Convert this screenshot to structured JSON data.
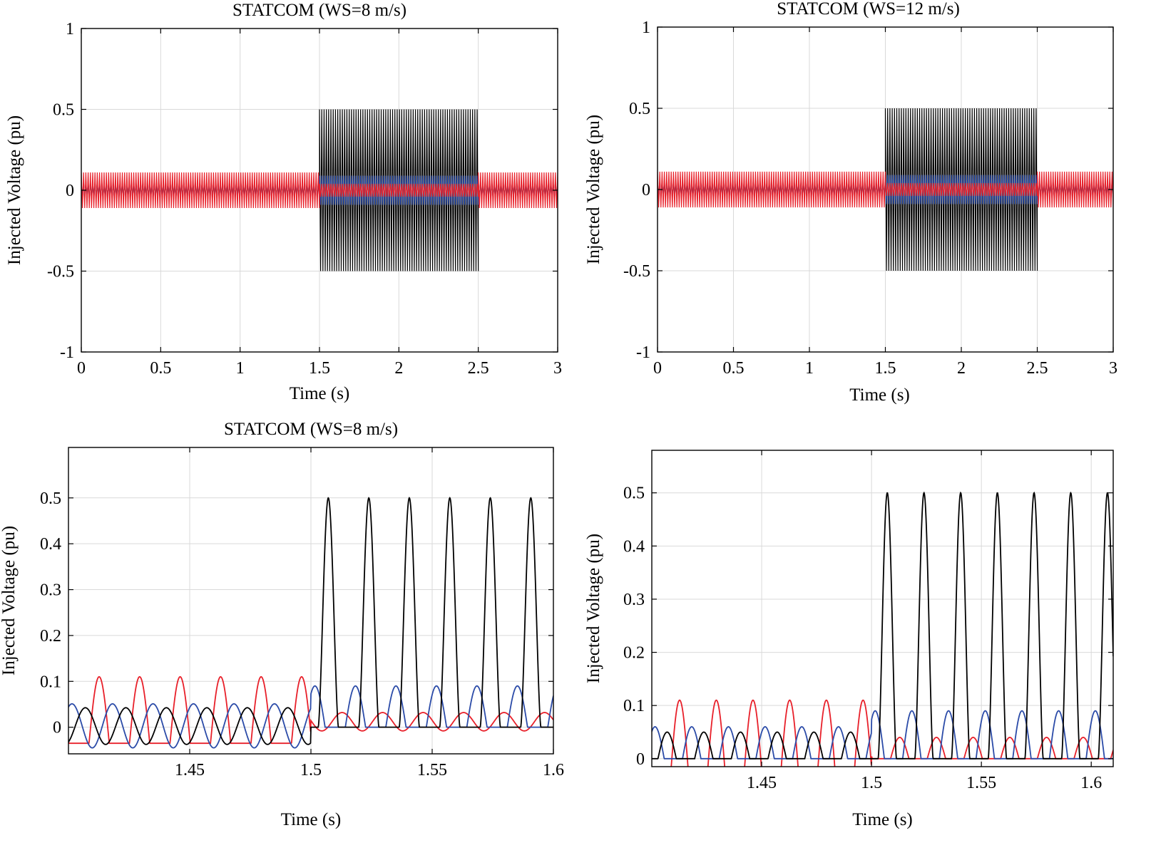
{
  "chart_data": [
    {
      "type": "line",
      "title": "STATCOM (WS=8 m/s)",
      "xlabel": "Time (s)",
      "ylabel": "Injected Voltage (pu)",
      "xlim": [
        0,
        3
      ],
      "ylim": [
        -1,
        1
      ],
      "xticks": [
        0,
        0.5,
        1,
        1.5,
        2,
        2.5,
        3
      ],
      "xtick_labels": [
        "0",
        "0.5",
        "1",
        "1.5",
        "2",
        "2.5",
        "3"
      ],
      "yticks": [
        -1,
        -0.5,
        0,
        0.5,
        1
      ],
      "ytick_labels": [
        "-1",
        "-0.5",
        "0",
        "0.5",
        "1"
      ],
      "grid": true,
      "legend": "none",
      "fault_window": [
        1.5,
        2.5
      ],
      "series": [
        {
          "color": "#000000",
          "envelope_normal": [
            -0.05,
            0.05
          ],
          "envelope_fault": [
            -0.5,
            0.5
          ]
        },
        {
          "color": "#2b4ba8",
          "envelope_normal": [
            -0.06,
            0.06
          ],
          "envelope_fault": [
            -0.09,
            0.09
          ]
        },
        {
          "color": "#e8202a",
          "envelope_normal": [
            -0.11,
            0.11
          ],
          "envelope_fault": [
            -0.04,
            0.04
          ]
        }
      ]
    },
    {
      "type": "line",
      "title": "STATCOM (WS=12 m/s)",
      "xlabel": "Time (s)",
      "ylabel": "Injected Voltage (pu)",
      "xlim": [
        0,
        3
      ],
      "ylim": [
        -1,
        1
      ],
      "xticks": [
        0,
        0.5,
        1,
        1.5,
        2,
        2.5,
        3
      ],
      "xtick_labels": [
        "0",
        "0.5",
        "1",
        "1.5",
        "2",
        "2.5",
        "3"
      ],
      "yticks": [
        -1,
        -0.5,
        0,
        0.5,
        1
      ],
      "ytick_labels": [
        "-1",
        "-0.5",
        "0",
        "0.5",
        "1"
      ],
      "grid": true,
      "legend": "none",
      "fault_window": [
        1.5,
        2.5
      ],
      "series": [
        {
          "color": "#000000",
          "envelope_normal": [
            -0.05,
            0.05
          ],
          "envelope_fault": [
            -0.5,
            0.5
          ]
        },
        {
          "color": "#2b4ba8",
          "envelope_normal": [
            -0.06,
            0.06
          ],
          "envelope_fault": [
            -0.09,
            0.09
          ]
        },
        {
          "color": "#e8202a",
          "envelope_normal": [
            -0.11,
            0.11
          ],
          "envelope_fault": [
            -0.04,
            0.04
          ]
        }
      ]
    },
    {
      "type": "line",
      "title": "STATCOM (WS=8 m/s)",
      "xlabel": "Time (s)",
      "ylabel": "Injected Voltage (pu)",
      "xlim": [
        1.4,
        1.6
      ],
      "ylim": [
        -0.058,
        0.61
      ],
      "xticks": [
        1.45,
        1.5,
        1.55,
        1.6
      ],
      "xtick_labels": [
        "1.45",
        "1.5",
        "1.55",
        "1.6"
      ],
      "yticks": [
        0,
        0.1,
        0.2,
        0.3,
        0.4,
        0.5
      ],
      "ytick_labels": [
        "0",
        "0.1",
        "0.2",
        "0.3",
        "0.4",
        "0.5"
      ],
      "grid": true,
      "legend": "none",
      "fault_start": 1.5,
      "period": 0.0167,
      "series": [
        {
          "color": "#000000",
          "amplitude_before": 0.05,
          "amplitude_after": 0.5,
          "shape_before": "sine",
          "shape_after": "rectified"
        },
        {
          "color": "#2b4ba8",
          "amplitude_before": 0.06,
          "amplitude_after": 0.09,
          "shape_before": "sine",
          "shape_after": "rectified"
        },
        {
          "color": "#e8202a",
          "amplitude_before": 0.11,
          "amplitude_after": 0.04,
          "shape_before": "rectified",
          "shape_after": "sine"
        }
      ]
    },
    {
      "type": "line",
      "title": "",
      "xlabel": "Time (s)",
      "ylabel": "Injected Voltage (pu)",
      "xlim": [
        1.4,
        1.61
      ],
      "ylim": [
        -0.015,
        0.58
      ],
      "xticks": [
        1.45,
        1.5,
        1.55,
        1.6
      ],
      "xtick_labels": [
        "1.45",
        "1.5",
        "1.55",
        "1.6"
      ],
      "yticks": [
        0,
        0.1,
        0.2,
        0.3,
        0.4,
        0.5
      ],
      "ytick_labels": [
        "0",
        "0.1",
        "0.2",
        "0.3",
        "0.4",
        "0.5"
      ],
      "grid": true,
      "legend": "none",
      "fault_start": 1.5,
      "period": 0.0167,
      "series": [
        {
          "color": "#000000",
          "amplitude_before": 0.05,
          "amplitude_after": 0.5,
          "shape_before": "rectified",
          "shape_after": "rectified"
        },
        {
          "color": "#2b4ba8",
          "amplitude_before": 0.06,
          "amplitude_after": 0.09,
          "shape_before": "rectified",
          "shape_after": "rectified"
        },
        {
          "color": "#e8202a",
          "amplitude_before": 0.11,
          "amplitude_after": 0.04,
          "shape_before": "rectified",
          "shape_after": "rectified"
        }
      ]
    }
  ]
}
